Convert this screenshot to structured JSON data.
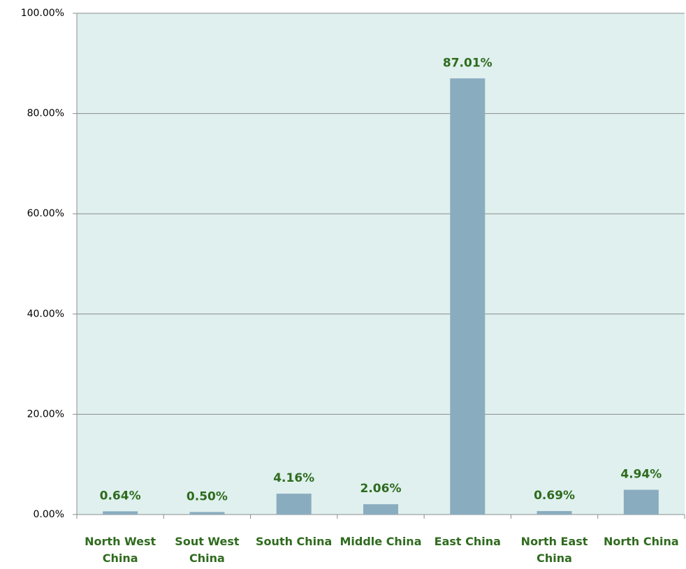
{
  "chart_data": {
    "type": "bar",
    "categories": [
      "North West China",
      "Sout West China",
      "South China",
      "Middle China",
      "East China",
      "North East China",
      "North China"
    ],
    "values": [
      0.64,
      0.5,
      4.16,
      2.06,
      87.01,
      0.69,
      4.94
    ],
    "value_labels": [
      "0.64%",
      "0.50%",
      "4.16%",
      "2.06%",
      "87.01%",
      "0.69%",
      "4.94%"
    ],
    "color": "#8aacbf",
    "ylim": [
      0,
      100
    ],
    "yticks": [
      {
        "value": 0,
        "label": "0.00%"
      },
      {
        "value": 20,
        "label": "20.00%"
      },
      {
        "value": 40,
        "label": "40.00%"
      },
      {
        "value": 60,
        "label": "60.00%"
      },
      {
        "value": 80,
        "label": "80.00%"
      },
      {
        "value": 100,
        "label": "100.00%"
      }
    ],
    "grid": true
  }
}
